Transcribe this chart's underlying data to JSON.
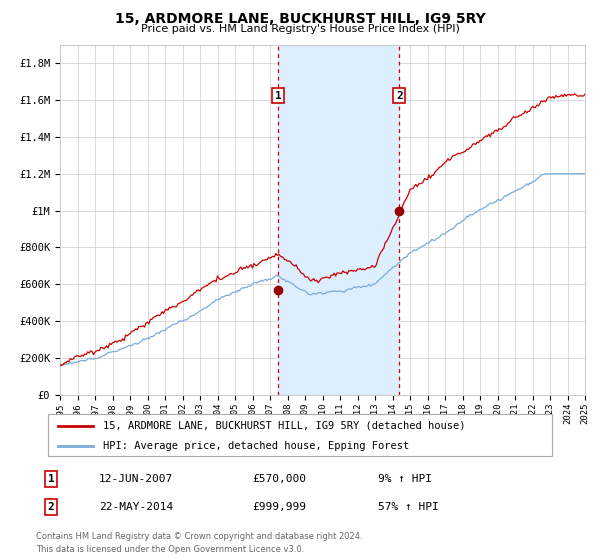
{
  "title": "15, ARDMORE LANE, BUCKHURST HILL, IG9 5RY",
  "subtitle": "Price paid vs. HM Land Registry's House Price Index (HPI)",
  "legend_line1": "15, ARDMORE LANE, BUCKHURST HILL, IG9 5RY (detached house)",
  "legend_line2": "HPI: Average price, detached house, Epping Forest",
  "annotation1_label": "1",
  "annotation1_date": "12-JUN-2007",
  "annotation1_price": "£570,000",
  "annotation1_hpi": "9% ↑ HPI",
  "annotation1_year": 2007.45,
  "annotation1_value": 570000,
  "annotation2_label": "2",
  "annotation2_date": "22-MAY-2014",
  "annotation2_price": "£999,999",
  "annotation2_hpi": "57% ↑ HPI",
  "annotation2_year": 2014.39,
  "annotation2_value": 999999,
  "hpi_color": "#7aacda",
  "price_color": "#cc0000",
  "dot_color": "#990000",
  "shading_color": "#ddeeff",
  "dashed_line_color": "#cc0000",
  "background_color": "#ffffff",
  "grid_color": "#cccccc",
  "ylim_min": 0,
  "ylim_max": 1900000,
  "start_year": 1995,
  "end_year": 2025,
  "footnote1": "Contains HM Land Registry data © Crown copyright and database right 2024.",
  "footnote2": "This data is licensed under the Open Government Licence v3.0."
}
